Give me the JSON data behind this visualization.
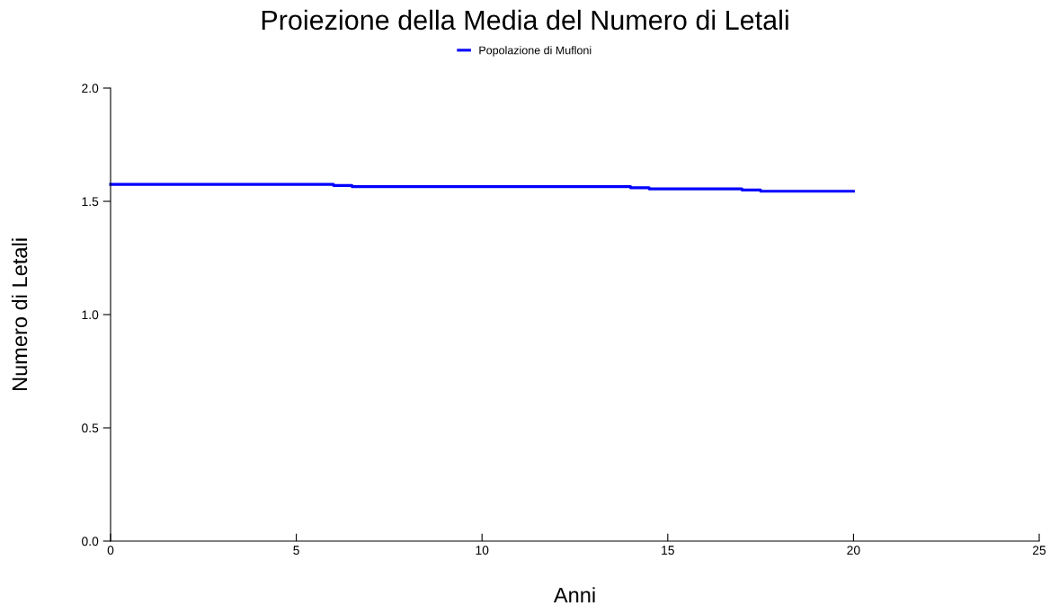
{
  "chart_data": {
    "type": "line",
    "title": "Proiezione della Media del Numero di Letali",
    "xlabel": "Anni",
    "ylabel": "Numero di Letali",
    "xlim": [
      0,
      25
    ],
    "xticks": [
      0,
      5,
      10,
      15,
      20,
      25
    ],
    "ylim": [
      0,
      2.0
    ],
    "yticks": [
      {
        "value": 0,
        "label": "0.0"
      },
      {
        "value": 0.5,
        "label": "0.5"
      },
      {
        "value": 1.0,
        "label": "1.0"
      },
      {
        "value": 1.5,
        "label": "1.5"
      },
      {
        "value": 2.0,
        "label": "2.0"
      }
    ],
    "grid": false,
    "legend": "top",
    "marker": "none",
    "line_style": "solid",
    "series": [
      {
        "name": "Popolazione di Mufloni",
        "color": "#0000ff",
        "x": [
          0,
          6,
          6,
          6.5,
          6.5,
          14,
          14,
          14.5,
          14.5,
          17,
          17,
          17.5,
          17.5,
          20
        ],
        "values": [
          1.575,
          1.575,
          1.57,
          1.57,
          1.565,
          1.565,
          1.56,
          1.56,
          1.555,
          1.555,
          1.55,
          1.55,
          1.545,
          1.545
        ]
      }
    ]
  }
}
